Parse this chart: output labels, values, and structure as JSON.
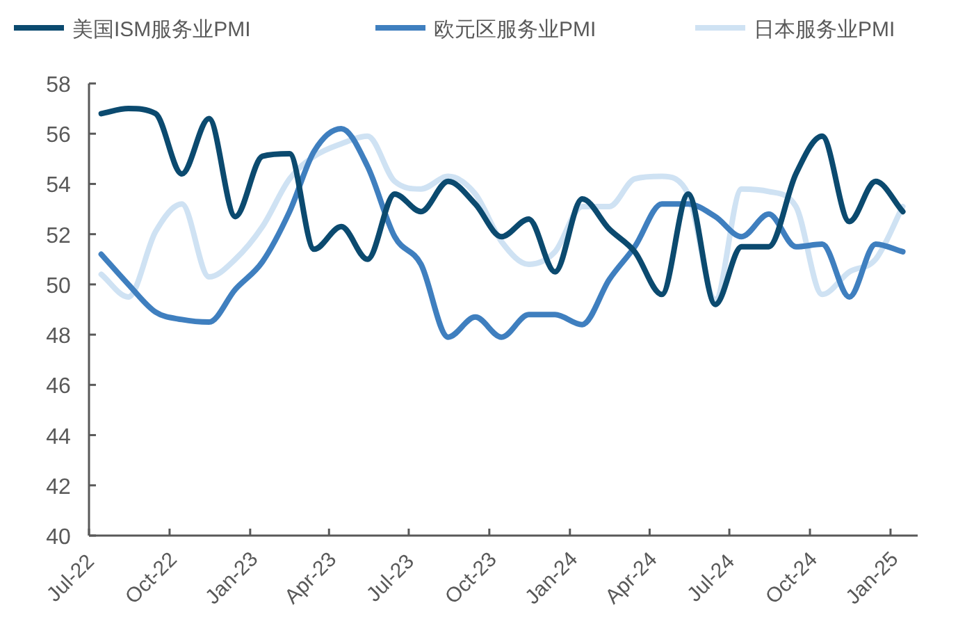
{
  "chart_data": {
    "type": "line",
    "legend": "top",
    "marker": "none",
    "line_style": "solid",
    "grid": false,
    "x": [
      "2022-07-15",
      "2022-08-15",
      "2022-09-15",
      "2022-10-15",
      "2022-11-15",
      "2022-12-15",
      "2023-01-15",
      "2023-02-15",
      "2023-03-15",
      "2023-04-15",
      "2023-05-15",
      "2023-06-15",
      "2023-07-15",
      "2023-08-15",
      "2023-09-15",
      "2023-10-15",
      "2023-11-15",
      "2023-12-15",
      "2024-01-15",
      "2024-02-15",
      "2024-03-15",
      "2024-04-15",
      "2024-05-15",
      "2024-06-15",
      "2024-07-15",
      "2024-08-15",
      "2024-09-15",
      "2024-10-15",
      "2024-11-15",
      "2024-12-15",
      "2025-01-15"
    ],
    "xlim": [
      "2022-07-01",
      "2025-02-01"
    ],
    "xticks": [
      {
        "value": "2022-07-01",
        "label": "Jul-22"
      },
      {
        "value": "2022-10-01",
        "label": "Oct-22"
      },
      {
        "value": "2023-01-01",
        "label": "Jan-23"
      },
      {
        "value": "2023-04-01",
        "label": "Apr-23"
      },
      {
        "value": "2023-07-01",
        "label": "Jul-23"
      },
      {
        "value": "2023-10-01",
        "label": "Oct-23"
      },
      {
        "value": "2024-01-01",
        "label": "Jan-24"
      },
      {
        "value": "2024-04-01",
        "label": "Apr-24"
      },
      {
        "value": "2024-07-01",
        "label": "Jul-24"
      },
      {
        "value": "2024-10-01",
        "label": "Oct-24"
      },
      {
        "value": "2025-01-01",
        "label": "Jan-25"
      }
    ],
    "ylim": [
      40,
      58
    ],
    "yticks": [
      40,
      42,
      44,
      46,
      48,
      50,
      52,
      54,
      56,
      58
    ],
    "series": [
      {
        "name": "美国ISM服务业PMI",
        "color": "#0b4a6f",
        "values": [
          56.8,
          57.0,
          56.8,
          54.4,
          56.6,
          52.7,
          55.1,
          55.2,
          51.4,
          52.3,
          51.0,
          53.6,
          52.9,
          54.1,
          53.2,
          51.9,
          52.6,
          50.5,
          53.4,
          52.2,
          51.3,
          49.6,
          53.6,
          49.2,
          51.5,
          51.5,
          54.4,
          55.9,
          52.5,
          54.1,
          52.9
        ]
      },
      {
        "name": "欧元区服务业PMI",
        "color": "#3f7fbf",
        "values": [
          51.2,
          50.0,
          48.9,
          48.6,
          48.5,
          49.8,
          50.9,
          52.9,
          55.3,
          56.2,
          54.7,
          51.9,
          50.8,
          47.9,
          48.7,
          47.9,
          48.8,
          48.8,
          48.4,
          50.2,
          51.5,
          53.2,
          53.2,
          52.7,
          51.9,
          52.8,
          51.5,
          51.6,
          49.5,
          51.6,
          51.3
        ]
      },
      {
        "name": "日本服务业PMI",
        "color": "#cfe2f3",
        "values": [
          50.4,
          49.5,
          52.1,
          53.2,
          50.3,
          51.0,
          52.3,
          54.2,
          55.1,
          55.6,
          55.9,
          54.1,
          53.8,
          54.3,
          53.6,
          51.7,
          50.8,
          51.3,
          53.1,
          53.1,
          54.2,
          54.3,
          53.6,
          49.4,
          53.8,
          53.7,
          53.1,
          49.6,
          50.5,
          51.0,
          53.1
        ]
      }
    ]
  }
}
